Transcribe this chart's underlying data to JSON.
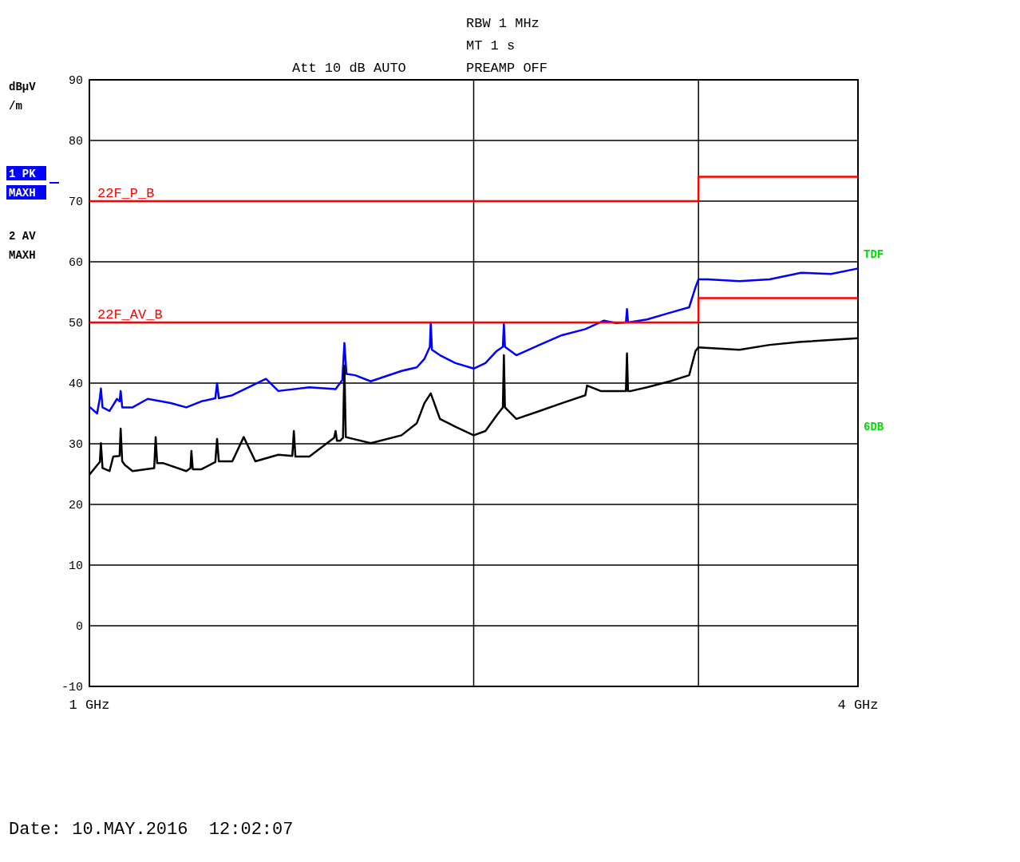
{
  "chart_data": {
    "type": "line",
    "ylabel": "dBµV /m",
    "log": "x",
    "grid": true,
    "legend": "left",
    "marker": "none",
    "line_style": "solid",
    "xlim": [
      1,
      4
    ],
    "xticks": [
      {
        "value": 1,
        "label": "1 GHz"
      },
      {
        "value": 2,
        "label": null
      },
      {
        "value": 3,
        "label": null
      },
      {
        "value": 4,
        "label": "4 GHz"
      }
    ],
    "ylim": [
      -10,
      90
    ],
    "yticks": [
      -10,
      0,
      10,
      20,
      30,
      40,
      50,
      60,
      70,
      80,
      90
    ],
    "series": [
      {
        "name": "1 PK MAXH",
        "color": "#0000ff",
        "x": [
          1.0,
          1.014,
          1.019,
          1.021,
          1.024,
          1.037,
          1.051,
          1.056,
          1.058,
          1.061,
          1.081,
          1.111,
          1.158,
          1.191,
          1.224,
          1.255,
          1.259,
          1.263,
          1.294,
          1.375,
          1.406,
          1.487,
          1.559,
          1.578,
          1.584,
          1.59,
          1.615,
          1.661,
          1.756,
          1.805,
          1.83,
          1.848,
          1.851,
          1.855,
          1.882,
          1.935,
          2.0,
          2.043,
          2.085,
          2.108,
          2.112,
          2.116,
          2.16,
          2.252,
          2.345,
          2.446,
          2.53,
          2.586,
          2.632,
          2.637,
          2.642,
          2.734,
          2.849,
          2.95,
          2.984,
          3.0,
          3.05,
          3.23,
          3.41,
          3.61,
          3.81,
          4.0
        ],
        "values": [
          36.1,
          35,
          37.5,
          39.1,
          36,
          35.4,
          37.4,
          37,
          38.7,
          36,
          36,
          37.4,
          36.7,
          36,
          37,
          37.5,
          40,
          37.5,
          38,
          40.7,
          38.7,
          39.3,
          39,
          40.5,
          46.6,
          41.5,
          41.3,
          40.3,
          42,
          42.6,
          44,
          46,
          50,
          45.5,
          44.6,
          43.3,
          42.4,
          43.3,
          45.3,
          46,
          49.7,
          46,
          44.6,
          46.3,
          47.9,
          48.9,
          50.3,
          49.9,
          50,
          52.2,
          50,
          50.5,
          51.6,
          52.5,
          55.8,
          57.1,
          57.1,
          56.8,
          57.1,
          58.2,
          58,
          58.9
        ]
      },
      {
        "name": "2 AV MAXH",
        "color": "#000000",
        "x": [
          1.0,
          1.019,
          1.021,
          1.024,
          1.037,
          1.044,
          1.056,
          1.058,
          1.061,
          1.066,
          1.081,
          1.124,
          1.127,
          1.13,
          1.143,
          1.191,
          1.2,
          1.202,
          1.205,
          1.224,
          1.255,
          1.259,
          1.263,
          1.294,
          1.321,
          1.349,
          1.406,
          1.442,
          1.446,
          1.45,
          1.487,
          1.555,
          1.559,
          1.563,
          1.572,
          1.58,
          1.584,
          1.588,
          1.595,
          1.661,
          1.756,
          1.805,
          1.83,
          1.851,
          1.882,
          1.935,
          2.0,
          2.043,
          2.085,
          2.108,
          2.112,
          2.116,
          2.16,
          2.252,
          2.345,
          2.446,
          2.454,
          2.515,
          2.632,
          2.637,
          2.642,
          2.656,
          2.734,
          2.849,
          2.95,
          2.984,
          3.0,
          3.23,
          3.41,
          3.61,
          4.0
        ],
        "values": [
          24.9,
          27,
          30.1,
          26,
          25.5,
          27.9,
          28,
          32.5,
          27.1,
          26.5,
          25.5,
          26,
          31.1,
          26.8,
          26.8,
          25.5,
          26,
          28.8,
          25.8,
          25.8,
          27,
          30.8,
          27.1,
          27.1,
          31.1,
          27.1,
          28.2,
          28,
          32.1,
          27.9,
          27.9,
          31,
          32.1,
          30.5,
          30.5,
          31,
          42.9,
          31.1,
          31,
          30.1,
          31.4,
          33.4,
          36.7,
          38.3,
          34.1,
          32.8,
          31.4,
          32.1,
          34.7,
          36,
          44.6,
          36,
          34.1,
          35.4,
          36.7,
          38,
          39.6,
          38.7,
          38.7,
          44.9,
          38.7,
          38.7,
          39.3,
          40.3,
          41.3,
          45.3,
          45.9,
          45.5,
          46.3,
          46.8,
          47.4
        ]
      },
      {
        "name": "22F_P_B",
        "color": "#ff0000",
        "x": [
          1,
          3,
          3,
          4
        ],
        "values": [
          70,
          70,
          74,
          74
        ]
      },
      {
        "name": "22F_AV_B",
        "color": "#ff0000",
        "x": [
          1,
          3,
          3,
          4
        ],
        "values": [
          50,
          50,
          54,
          54
        ]
      }
    ],
    "annotations": [
      "RBW 1 MHz",
      "MT 1 s",
      "Att 10 dB AUTO",
      "PREAMP OFF",
      "TDF",
      "6DB",
      "Date: 10.MAY.2016  12:02:07"
    ]
  }
}
